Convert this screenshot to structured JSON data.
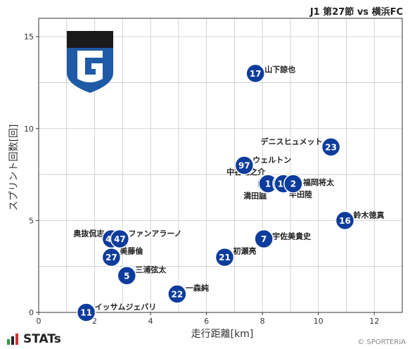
{
  "header": {
    "title": "J1 第27節 vs 横浜FC"
  },
  "footer": {
    "brand": "STATs",
    "copyright": "© SPORTERIA"
  },
  "colors": {
    "point": "#0d3c9c",
    "grid": "#c8c8c8",
    "axis": "#333333",
    "logo_dark": "#1a1a1a",
    "logo_blue": "#1f5aa6",
    "brand_green": "#2f9a3e",
    "brand_red": "#d22f2f"
  },
  "chart_data": {
    "type": "scatter",
    "xlabel": "走行距離[km]",
    "ylabel": "スプリント回数[回]",
    "xlim": [
      0,
      13
    ],
    "ylim": [
      0,
      16
    ],
    "xticks": [
      0,
      2,
      4,
      6,
      8,
      10,
      12
    ],
    "yticks": [
      0,
      5,
      10,
      15
    ],
    "grid": true,
    "points": [
      {
        "number": "17",
        "name": "山下諒也",
        "x": 7.75,
        "y": 13
      },
      {
        "number": "23",
        "name": "デニスヒュメット",
        "x": 10.45,
        "y": 9
      },
      {
        "number": "97",
        "name": "ウェルトン",
        "x": 7.35,
        "y": 8
      },
      {
        "number": "5",
        "name": "中谷進之介",
        "x": 8.15,
        "y": 7
      },
      {
        "number": "1",
        "name": "満田誠",
        "x": 8.2,
        "y": 7
      },
      {
        "number": "2",
        "name": "福岡将太",
        "x": 8.7,
        "y": 7
      },
      {
        "number": "10",
        "name": "半田陸",
        "x": 8.75,
        "y": 7
      },
      {
        "number": "2",
        "name": "",
        "x": 9.1,
        "y": 7
      },
      {
        "number": "16",
        "name": "鈴木徳真",
        "x": 10.95,
        "y": 5
      },
      {
        "number": "7",
        "name": "宇佐美貴史",
        "x": 8.05,
        "y": 4
      },
      {
        "number": "44",
        "name": "奥抜侃志",
        "x": 2.6,
        "y": 4
      },
      {
        "number": "47",
        "name": "ファンアラーノ",
        "x": 2.9,
        "y": 4
      },
      {
        "number": "27",
        "name": "美藤倫",
        "x": 2.6,
        "y": 3
      },
      {
        "number": "21",
        "name": "初瀬亮",
        "x": 6.65,
        "y": 3
      },
      {
        "number": "5",
        "name": "三浦弦太",
        "x": 3.15,
        "y": 2
      },
      {
        "number": "22",
        "name": "一森純",
        "x": 4.95,
        "y": 1
      },
      {
        "number": "11",
        "name": "イッサムジェバリ",
        "x": 1.7,
        "y": 0
      }
    ]
  }
}
